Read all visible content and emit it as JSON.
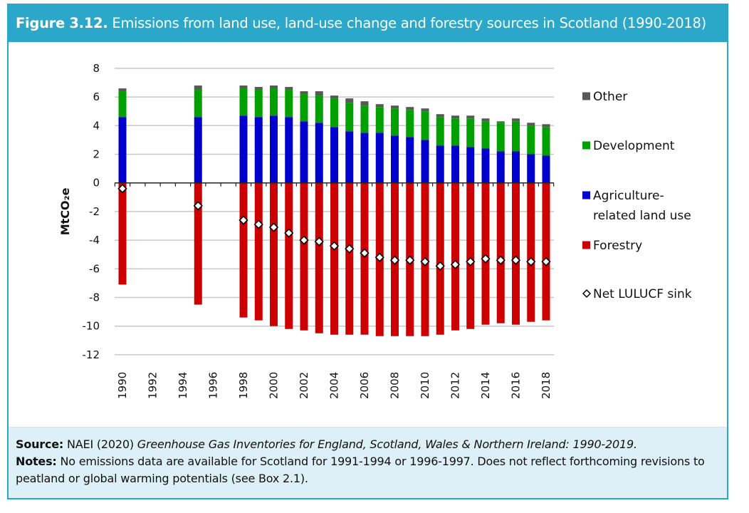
{
  "header": {
    "figure_label": "Figure 3.12.",
    "title": "Emissions from land use, land-use change and forestry sources in Scotland (1990-2018)"
  },
  "footer": {
    "source_label": "Source:",
    "source_text": "NAEI (2020) ",
    "source_title": "Greenhouse Gas Inventories for England, Scotland, Wales & Northern Ireland: 1990-2019.",
    "notes_label": "Notes:",
    "notes_text": "No emissions data are available for Scotland for 1991-1994 or 1996-1997. Does not reflect forthcoming revisions to peatland or global warming potentials (see Box 2.1)."
  },
  "colors": {
    "frame": "#2aa7c9",
    "footer_bg": "#ddf0f8",
    "Other": "#595959",
    "Development": "#00a000",
    "Agriculture": "#0000cc",
    "Forestry": "#cc0000"
  },
  "chart_data": {
    "type": "bar",
    "stacked": true,
    "ylabel": "MtCO₂e",
    "ylim": [
      -12,
      8
    ],
    "yticks": [
      8,
      6,
      4,
      2,
      0,
      -2,
      -4,
      -6,
      -8,
      -10,
      -12
    ],
    "xticks": [
      "1990",
      "1992",
      "1994",
      "1996",
      "1998",
      "2000",
      "2002",
      "2004",
      "2006",
      "2008",
      "2010",
      "2012",
      "2014",
      "2016",
      "2018"
    ],
    "grid": true,
    "legend_position": "right",
    "categories": [
      1990,
      1995,
      1998,
      1999,
      2000,
      2001,
      2002,
      2003,
      2004,
      2005,
      2006,
      2007,
      2008,
      2009,
      2010,
      2011,
      2012,
      2013,
      2014,
      2015,
      2016,
      2017,
      2018
    ],
    "series": [
      {
        "name": "Forestry",
        "values": [
          -7.1,
          -8.5,
          -9.4,
          -9.6,
          -10.0,
          -10.2,
          -10.3,
          -10.5,
          -10.6,
          -10.6,
          -10.6,
          -10.7,
          -10.7,
          -10.7,
          -10.7,
          -10.6,
          -10.3,
          -10.2,
          -9.9,
          -9.8,
          -9.9,
          -9.7,
          -9.6
        ]
      },
      {
        "name": "Agriculture-related land use",
        "values": [
          4.6,
          4.6,
          4.7,
          4.6,
          4.7,
          4.6,
          4.3,
          4.2,
          3.9,
          3.6,
          3.5,
          3.5,
          3.3,
          3.2,
          3.0,
          2.6,
          2.6,
          2.5,
          2.4,
          2.2,
          2.2,
          2.0,
          1.9
        ]
      },
      {
        "name": "Development",
        "values": [
          1.8,
          1.9,
          1.9,
          1.9,
          1.9,
          1.9,
          1.9,
          1.9,
          2.0,
          2.0,
          1.9,
          1.8,
          1.9,
          1.9,
          2.0,
          2.0,
          1.9,
          2.0,
          1.9,
          2.0,
          2.1,
          2.0,
          2.0
        ]
      },
      {
        "name": "Other",
        "values": [
          0.2,
          0.3,
          0.2,
          0.2,
          0.2,
          0.2,
          0.2,
          0.3,
          0.2,
          0.3,
          0.3,
          0.2,
          0.2,
          0.2,
          0.2,
          0.2,
          0.2,
          0.2,
          0.2,
          0.1,
          0.2,
          0.2,
          0.2
        ]
      }
    ],
    "line_series": {
      "name": "Net LULUCF sink",
      "marker": "diamond",
      "values": [
        -0.4,
        -1.6,
        -2.6,
        -2.9,
        -3.1,
        -3.5,
        -4.0,
        -4.1,
        -4.4,
        -4.6,
        -4.9,
        -5.2,
        -5.4,
        -5.4,
        -5.5,
        -5.8,
        -5.7,
        -5.5,
        -5.3,
        -5.4,
        -5.4,
        -5.5,
        -5.5
      ]
    },
    "legend": [
      {
        "name": "Other",
        "lines": [
          "Other"
        ]
      },
      {
        "name": "Development",
        "lines": [
          "Development"
        ]
      },
      {
        "name": "Agriculture",
        "lines": [
          "Agriculture-",
          "related land use"
        ]
      },
      {
        "name": "Forestry",
        "lines": [
          "Forestry"
        ]
      },
      {
        "name": "Net LULUCF sink",
        "lines": [
          "Net LULUCF sink"
        ]
      }
    ]
  }
}
